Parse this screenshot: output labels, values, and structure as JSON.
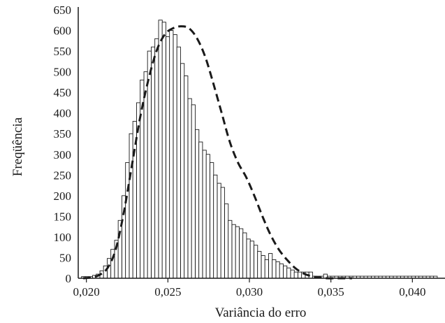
{
  "chart_data": {
    "type": "bar",
    "xlabel": "Variância do erro",
    "ylabel": "Freqüência",
    "xlim": [
      0.0195,
      0.042
    ],
    "ylim": [
      0,
      650
    ],
    "x_ticks": [
      0.02,
      0.025,
      0.03,
      0.035,
      0.04
    ],
    "x_tick_labels": [
      "0,020",
      "0,025",
      "0,030",
      "0,035",
      "0,040"
    ],
    "y_ticks": [
      0,
      50,
      100,
      150,
      200,
      250,
      300,
      350,
      400,
      450,
      500,
      550,
      600,
      650
    ],
    "y_tick_labels": [
      "0",
      "50",
      "100",
      "150",
      "200",
      "250",
      "300",
      "350",
      "400",
      "450",
      "500",
      "550",
      "600",
      "650"
    ],
    "bin_width": 0.000225,
    "grid": false,
    "series": [
      {
        "kind": "histogram",
        "bin_start": [
          0.0197,
          0.01993,
          0.02015,
          0.02038,
          0.0206,
          0.02083,
          0.02105,
          0.02128,
          0.0215,
          0.02173,
          0.02195,
          0.02218,
          0.0224,
          0.02263,
          0.02285,
          0.02308,
          0.0233,
          0.02353,
          0.02375,
          0.02398,
          0.0242,
          0.02443,
          0.02465,
          0.02488,
          0.0251,
          0.02533,
          0.02555,
          0.02578,
          0.026,
          0.02623,
          0.02645,
          0.02668,
          0.0269,
          0.02713,
          0.02735,
          0.02758,
          0.0278,
          0.02803,
          0.02825,
          0.02848,
          0.0287,
          0.02893,
          0.02915,
          0.02938,
          0.0296,
          0.02983,
          0.03005,
          0.03028,
          0.0305,
          0.03073,
          0.03095,
          0.03118,
          0.0314,
          0.03163,
          0.03185,
          0.03208,
          0.0323,
          0.03253,
          0.03275,
          0.03298,
          0.0332,
          0.03343,
          0.03365,
          0.03388,
          0.0341,
          0.03433,
          0.03455,
          0.03478,
          0.035,
          0.03523,
          0.03545,
          0.03568,
          0.0359,
          0.03613,
          0.03635,
          0.03658,
          0.0368,
          0.03703,
          0.03725,
          0.03748,
          0.0377,
          0.03793,
          0.03815,
          0.03838,
          0.0386,
          0.03883,
          0.03905,
          0.03928,
          0.0395,
          0.03973,
          0.03995,
          0.04018,
          0.0404,
          0.04063,
          0.04085,
          0.04108,
          0.0413
        ],
        "counts": [
          4,
          4,
          4,
          7,
          10,
          18,
          30,
          48,
          70,
          92,
          140,
          200,
          280,
          350,
          380,
          425,
          480,
          500,
          550,
          560,
          580,
          625,
          620,
          585,
          600,
          590,
          560,
          520,
          490,
          435,
          420,
          360,
          330,
          310,
          300,
          280,
          250,
          230,
          220,
          180,
          140,
          130,
          125,
          120,
          110,
          95,
          90,
          80,
          65,
          55,
          45,
          60,
          45,
          40,
          35,
          30,
          25,
          20,
          15,
          15,
          15,
          15,
          15,
          5,
          5,
          5,
          10,
          5,
          5,
          5,
          5,
          5,
          5,
          5,
          5,
          5,
          5,
          5,
          5,
          5,
          5,
          5,
          5,
          5,
          5,
          5,
          5,
          5,
          5,
          5,
          5,
          5,
          5,
          5,
          5,
          5,
          5
        ]
      },
      {
        "kind": "fitted-curve",
        "style": "dashed",
        "x": [
          0.0198,
          0.0203,
          0.0208,
          0.0213,
          0.0218,
          0.0223,
          0.0228,
          0.0233,
          0.0238,
          0.0243,
          0.0248,
          0.0253,
          0.0258,
          0.0263,
          0.0268,
          0.0273,
          0.0278,
          0.0283,
          0.0288,
          0.0293,
          0.0298,
          0.0303,
          0.0308,
          0.0313,
          0.0318,
          0.0323,
          0.0328,
          0.0333,
          0.0338,
          0.0343,
          0.0348,
          0.0353,
          0.0358,
          0.0363
        ],
        "y": [
          0,
          2,
          8,
          25,
          70,
          160,
          275,
          390,
          480,
          550,
          590,
          605,
          610,
          605,
          580,
          535,
          470,
          400,
          330,
          280,
          245,
          200,
          150,
          105,
          70,
          45,
          25,
          12,
          5,
          2,
          0,
          0,
          0,
          0
        ]
      }
    ]
  }
}
